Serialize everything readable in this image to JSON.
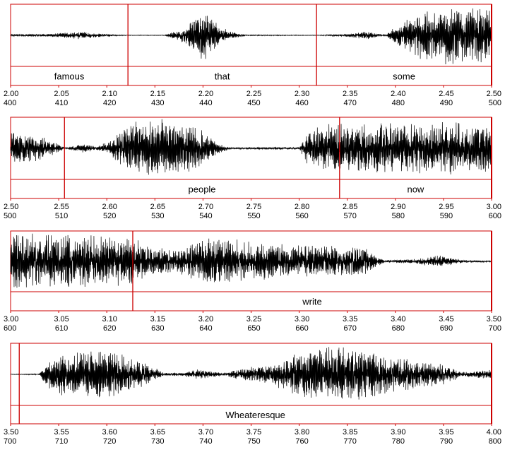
{
  "chart_data": [
    {
      "type": "waveform",
      "time_range": [
        2.0,
        2.5
      ],
      "sample_range": [
        400,
        500
      ],
      "time_ticks": [
        "2.00",
        "2.05",
        "2.10",
        "2.15",
        "2.20",
        "2.25",
        "2.30",
        "2.35",
        "2.40",
        "2.45",
        "2.50"
      ],
      "sample_ticks": [
        "400",
        "410",
        "420",
        "430",
        "440",
        "450",
        "460",
        "470",
        "480",
        "490",
        "500"
      ],
      "boundaries": [
        2.122,
        2.318
      ],
      "words": [
        {
          "text": "famous",
          "start": 2.0,
          "end": 2.122
        },
        {
          "text": "that",
          "start": 2.122,
          "end": 2.318
        },
        {
          "text": "some",
          "start": 2.318,
          "end": 2.5
        }
      ],
      "envelope": [
        [
          2.0,
          0.04
        ],
        [
          2.04,
          0.05
        ],
        [
          2.07,
          0.13
        ],
        [
          2.095,
          0.06
        ],
        [
          2.11,
          0.02
        ],
        [
          2.12,
          0.01
        ],
        [
          2.16,
          0.01
        ],
        [
          2.172,
          0.15
        ],
        [
          2.182,
          0.28
        ],
        [
          2.2,
          0.9
        ],
        [
          2.215,
          0.4
        ],
        [
          2.23,
          0.12
        ],
        [
          2.245,
          0.02
        ],
        [
          2.31,
          0.01
        ],
        [
          2.32,
          0.01
        ],
        [
          2.35,
          0.05
        ],
        [
          2.37,
          0.16
        ],
        [
          2.38,
          0.06
        ],
        [
          2.39,
          0.02
        ],
        [
          2.4,
          0.3
        ],
        [
          2.43,
          0.93
        ],
        [
          2.455,
          1.0
        ],
        [
          2.48,
          0.96
        ],
        [
          2.5,
          0.85
        ]
      ]
    },
    {
      "type": "waveform",
      "time_range": [
        2.5,
        3.0
      ],
      "sample_range": [
        500,
        600
      ],
      "time_ticks": [
        "2.50",
        "2.55",
        "2.60",
        "2.65",
        "2.70",
        "2.75",
        "2.80",
        "2.85",
        "2.90",
        "2.95",
        "3.00"
      ],
      "sample_ticks": [
        "500",
        "510",
        "520",
        "530",
        "540",
        "550",
        "560",
        "570",
        "580",
        "590",
        "600"
      ],
      "boundaries": [
        2.556,
        2.842
      ],
      "words": [
        {
          "text": "people",
          "start": 2.556,
          "end": 2.842
        },
        {
          "text": "now",
          "start": 2.842,
          "end": 3.0
        }
      ],
      "envelope": [
        [
          2.5,
          0.55
        ],
        [
          2.53,
          0.45
        ],
        [
          2.55,
          0.15
        ],
        [
          2.555,
          0.05
        ],
        [
          2.56,
          0.03
        ],
        [
          2.565,
          0.1
        ],
        [
          2.575,
          0.15
        ],
        [
          2.59,
          0.06
        ],
        [
          2.6,
          0.25
        ],
        [
          2.63,
          0.9
        ],
        [
          2.66,
          1.0
        ],
        [
          2.69,
          0.85
        ],
        [
          2.715,
          0.2
        ],
        [
          2.73,
          0.03
        ],
        [
          2.765,
          0.04
        ],
        [
          2.8,
          0.04
        ],
        [
          2.81,
          0.7
        ],
        [
          2.83,
          0.85
        ],
        [
          2.84,
          0.85
        ],
        [
          2.9,
          0.85
        ],
        [
          2.97,
          0.9
        ],
        [
          3.0,
          0.85
        ]
      ]
    },
    {
      "type": "waveform",
      "time_range": [
        3.0,
        3.5
      ],
      "sample_range": [
        600,
        700
      ],
      "time_ticks": [
        "3.00",
        "3.05",
        "3.10",
        "3.15",
        "3.20",
        "3.25",
        "3.30",
        "3.35",
        "3.40",
        "3.45",
        "3.50"
      ],
      "sample_ticks": [
        "600",
        "610",
        "620",
        "630",
        "640",
        "650",
        "660",
        "670",
        "680",
        "690",
        "700"
      ],
      "boundaries": [
        3.127
      ],
      "words": [
        {
          "text": "write",
          "start": 3.127,
          "end": 3.5
        }
      ],
      "envelope": [
        [
          3.0,
          1.0
        ],
        [
          3.05,
          0.95
        ],
        [
          3.1,
          0.9
        ],
        [
          3.127,
          0.85
        ],
        [
          3.14,
          0.6
        ],
        [
          3.17,
          0.35
        ],
        [
          3.2,
          0.8
        ],
        [
          3.23,
          0.8
        ],
        [
          3.28,
          0.6
        ],
        [
          3.33,
          0.55
        ],
        [
          3.37,
          0.45
        ],
        [
          3.38,
          0.18
        ],
        [
          3.39,
          0.04
        ],
        [
          3.42,
          0.08
        ],
        [
          3.445,
          0.22
        ],
        [
          3.47,
          0.05
        ],
        [
          3.5,
          0.02
        ]
      ]
    },
    {
      "type": "waveform",
      "time_range": [
        3.5,
        4.0
      ],
      "sample_range": [
        700,
        800
      ],
      "time_ticks": [
        "3.50",
        "3.55",
        "3.60",
        "3.65",
        "3.70",
        "3.75",
        "3.80",
        "3.85",
        "3.90",
        "3.95",
        "4.00"
      ],
      "sample_ticks": [
        "700",
        "710",
        "720",
        "730",
        "740",
        "750",
        "760",
        "770",
        "780",
        "790",
        "800"
      ],
      "boundaries": [
        3.509
      ],
      "words": [
        {
          "text": "Wheateresque",
          "start": 3.509,
          "end": 4.0
        }
      ],
      "envelope": [
        [
          3.5,
          0.01
        ],
        [
          3.53,
          0.02
        ],
        [
          3.54,
          0.55
        ],
        [
          3.56,
          0.8
        ],
        [
          3.6,
          0.82
        ],
        [
          3.63,
          0.6
        ],
        [
          3.66,
          0.05
        ],
        [
          3.68,
          0.06
        ],
        [
          3.695,
          0.18
        ],
        [
          3.72,
          0.05
        ],
        [
          3.74,
          0.2
        ],
        [
          3.77,
          0.35
        ],
        [
          3.8,
          0.75
        ],
        [
          3.83,
          0.95
        ],
        [
          3.86,
          0.9
        ],
        [
          3.9,
          0.6
        ],
        [
          3.95,
          0.35
        ],
        [
          3.97,
          0.1
        ],
        [
          4.0,
          0.15
        ]
      ]
    }
  ],
  "style": {
    "frame_color": "#cc0000",
    "wave_color": "#000000"
  }
}
